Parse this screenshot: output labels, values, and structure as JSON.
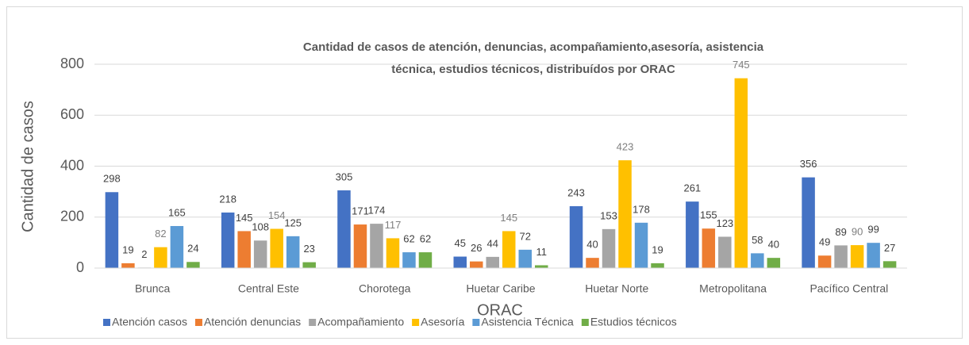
{
  "chart_data": {
    "type": "bar",
    "title": "Cantidad de casos de atención, denuncias, acompañamiento,asesoría, asistencia técnica, estudios técnicos, distribuídos por ORAC",
    "x_label": "ORAC",
    "y_label": "Cantidad de casos",
    "categories": [
      "Brunca",
      "Central Este",
      "Chorotega",
      "Huetar Caribe",
      "Huetar Norte",
      "Metropolitana",
      "Pacífico Central"
    ],
    "series": [
      {
        "name": "Atención casos",
        "color": "#4472c4",
        "values": [
          298,
          218,
          305,
          45,
          243,
          261,
          356
        ]
      },
      {
        "name": "Atención denuncias",
        "color": "#ed7d31",
        "values": [
          19,
          145,
          171,
          26,
          40,
          155,
          49
        ]
      },
      {
        "name": "Acompañamiento",
        "color": "#a5a5a5",
        "values": [
          2,
          108,
          174,
          44,
          153,
          123,
          89
        ]
      },
      {
        "name": "Asesoría",
        "color": "#ffc000",
        "values": [
          82,
          154,
          117,
          145,
          423,
          745,
          90
        ]
      },
      {
        "name": "Asistencia Técnica",
        "color": "#5b9bd5",
        "values": [
          165,
          125,
          62,
          72,
          178,
          58,
          99
        ]
      },
      {
        "name": "Estudios técnicos",
        "color": "#70ad47",
        "values": [
          24,
          23,
          62,
          11,
          19,
          40,
          27
        ]
      }
    ],
    "ylim": [
      0,
      800
    ],
    "yticks": [
      0,
      200,
      400,
      600,
      800
    ],
    "grid": true,
    "legend": "bottom"
  }
}
